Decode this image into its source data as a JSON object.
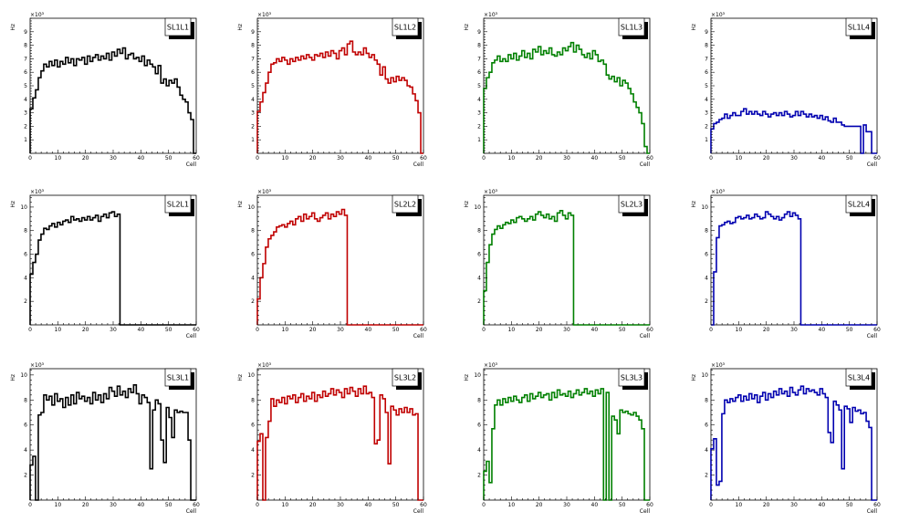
{
  "chart_data": [
    {
      "type": "line",
      "title": "SL1L1",
      "xlabel": "Cell",
      "ylabel": "Hz",
      "exponent": "×10³",
      "xlim": [
        0,
        60
      ],
      "ylim": [
        0,
        10
      ],
      "xticks": [
        0,
        10,
        20,
        30,
        40,
        50,
        60
      ],
      "yticks": [
        1,
        2,
        3,
        4,
        5,
        6,
        7,
        8,
        9
      ],
      "color": "#000000",
      "values": [
        3.3,
        4.1,
        4.7,
        5.6,
        6.1,
        6.6,
        6.4,
        6.8,
        6.5,
        6.9,
        6.4,
        6.8,
        6.6,
        7.1,
        6.7,
        7.0,
        6.5,
        7.0,
        6.9,
        7.1,
        6.6,
        7.2,
        6.8,
        7.1,
        7.3,
        6.9,
        7.2,
        7.0,
        7.4,
        6.9,
        7.5,
        7.2,
        7.7,
        7.4,
        7.8,
        7.0,
        7.3,
        7.4,
        7.0,
        7.1,
        6.8,
        7.2,
        6.5,
        6.9,
        6.6,
        6.4,
        5.9,
        6.5,
        5.2,
        5.5,
        5.0,
        5.4,
        5.2,
        5.5,
        4.9,
        4.3,
        4.0,
        3.8,
        3.0,
        2.5,
        0.0
      ]
    },
    {
      "type": "line",
      "title": "SL1L2",
      "xlabel": "Cell",
      "ylabel": "Hz",
      "exponent": "×10³",
      "xlim": [
        0,
        60
      ],
      "ylim": [
        0,
        10
      ],
      "xticks": [
        0,
        10,
        20,
        30,
        40,
        50,
        60
      ],
      "yticks": [
        1,
        2,
        3,
        4,
        5,
        6,
        7,
        8,
        9
      ],
      "color": "#c00000",
      "values": [
        3.1,
        3.8,
        4.5,
        5.2,
        6.0,
        6.6,
        6.7,
        7.0,
        6.8,
        7.1,
        6.9,
        6.6,
        7.0,
        6.8,
        7.1,
        6.9,
        7.2,
        7.0,
        7.3,
        7.1,
        6.9,
        7.3,
        7.2,
        7.4,
        7.1,
        7.5,
        7.2,
        7.6,
        7.4,
        7.0,
        7.6,
        7.8,
        7.3,
        8.1,
        8.3,
        7.5,
        7.3,
        7.5,
        7.3,
        7.8,
        7.4,
        7.1,
        7.3,
        6.9,
        6.6,
        5.8,
        6.4,
        5.5,
        5.2,
        5.6,
        5.3,
        5.7,
        5.4,
        5.6,
        5.4,
        5.0,
        4.9,
        4.4,
        3.9,
        3.0,
        0.0
      ]
    },
    {
      "type": "line",
      "title": "SL1L3",
      "xlabel": "Cell",
      "ylabel": "Hz",
      "exponent": "×10³",
      "xlim": [
        0,
        60
      ],
      "ylim": [
        0,
        10
      ],
      "xticks": [
        0,
        10,
        20,
        30,
        40,
        50,
        60
      ],
      "yticks": [
        1,
        2,
        3,
        4,
        5,
        6,
        7,
        8,
        9
      ],
      "color": "#008000",
      "values": [
        4.8,
        5.6,
        6.0,
        6.7,
        6.9,
        7.2,
        6.8,
        7.0,
        6.8,
        7.3,
        7.0,
        7.4,
        6.9,
        7.2,
        7.6,
        7.1,
        7.4,
        7.0,
        7.7,
        7.5,
        7.9,
        7.3,
        7.6,
        7.4,
        7.8,
        7.3,
        7.2,
        7.5,
        7.3,
        7.8,
        7.6,
        7.9,
        8.2,
        7.5,
        8.0,
        7.7,
        7.3,
        7.1,
        7.4,
        7.0,
        7.6,
        7.3,
        6.8,
        6.9,
        6.6,
        5.8,
        5.5,
        5.7,
        5.3,
        5.6,
        5.0,
        5.4,
        5.2,
        4.8,
        4.4,
        3.8,
        3.4,
        3.0,
        2.2,
        0.5,
        0.0
      ]
    },
    {
      "type": "line",
      "title": "SL1L4",
      "xlabel": "Cell",
      "ylabel": "Hz",
      "exponent": "×10³",
      "xlim": [
        0,
        60
      ],
      "ylim": [
        0,
        10
      ],
      "xticks": [
        0,
        10,
        20,
        30,
        40,
        50,
        60
      ],
      "yticks": [
        1,
        2,
        3,
        4,
        5,
        6,
        7,
        8,
        9
      ],
      "color": "#0000b0",
      "values": [
        1.8,
        2.2,
        2.3,
        2.5,
        2.6,
        2.9,
        2.6,
        2.8,
        3.0,
        2.8,
        2.8,
        3.1,
        3.3,
        2.9,
        3.1,
        2.9,
        3.1,
        2.9,
        2.8,
        3.1,
        2.9,
        2.7,
        2.9,
        3.0,
        2.8,
        3.0,
        2.8,
        3.1,
        2.9,
        2.7,
        2.8,
        3.1,
        2.8,
        3.1,
        2.9,
        2.7,
        2.9,
        2.7,
        2.8,
        2.6,
        2.8,
        2.5,
        2.7,
        2.4,
        2.3,
        2.6,
        2.3,
        2.3,
        2.1,
        2.0,
        2.0,
        2.0,
        2.0,
        2.0,
        2.0,
        0.0,
        2.1,
        1.6,
        1.6,
        0.0,
        0.0
      ]
    },
    {
      "type": "line",
      "title": "SL2L1",
      "xlabel": "Cell",
      "ylabel": "Hz",
      "exponent": "×10³",
      "xlim": [
        0,
        60
      ],
      "ylim": [
        0,
        11
      ],
      "xticks": [
        0,
        10,
        20,
        30,
        40,
        50,
        60
      ],
      "yticks": [
        2,
        4,
        6,
        8,
        10
      ],
      "color": "#000000",
      "values": [
        4.3,
        5.3,
        6.0,
        7.2,
        7.7,
        8.2,
        8.1,
        8.4,
        8.6,
        8.3,
        8.7,
        8.5,
        8.8,
        8.9,
        8.7,
        9.2,
        8.9,
        9.0,
        8.8,
        9.1,
        8.9,
        9.2,
        8.9,
        9.1,
        9.3,
        8.8,
        9.2,
        9.4,
        9.1,
        9.5,
        9.6,
        9.2,
        9.4,
        0.0,
        0.0,
        0.0,
        0.0,
        0.0,
        0.0,
        0.0,
        0.0,
        0.0,
        0.0,
        0.0,
        0.0,
        0.0,
        0.0,
        0.0,
        0.0,
        0.0,
        0.0,
        0.0,
        0.0,
        0.0,
        0.0,
        0.0,
        0.0,
        0.0,
        0.0,
        0.0,
        0.0
      ]
    },
    {
      "type": "line",
      "title": "SL2L2",
      "xlabel": "Cell",
      "ylabel": "Hz",
      "exponent": "×10³",
      "xlim": [
        0,
        60
      ],
      "ylim": [
        0,
        11
      ],
      "xticks": [
        0,
        10,
        20,
        30,
        40,
        50,
        60
      ],
      "yticks": [
        2,
        4,
        6,
        8,
        10
      ],
      "color": "#c00000",
      "values": [
        2.2,
        4.0,
        5.2,
        6.6,
        7.3,
        7.6,
        7.9,
        8.3,
        8.4,
        8.5,
        8.3,
        8.6,
        8.8,
        8.5,
        9.0,
        9.2,
        8.8,
        9.4,
        9.0,
        9.2,
        9.5,
        9.0,
        8.8,
        9.1,
        9.3,
        9.5,
        9.0,
        9.4,
        9.2,
        9.6,
        9.4,
        9.8,
        9.3,
        0.0,
        0.0,
        0.0,
        0.0,
        0.0,
        0.0,
        0.0,
        0.0,
        0.0,
        0.0,
        0.0,
        0.0,
        0.0,
        0.0,
        0.0,
        0.0,
        0.0,
        0.0,
        0.0,
        0.0,
        0.0,
        0.0,
        0.0,
        0.0,
        0.0,
        0.0,
        0.0,
        0.0
      ]
    },
    {
      "type": "line",
      "title": "SL2L3",
      "xlabel": "Cell",
      "ylabel": "Hz",
      "exponent": "×10³",
      "xlim": [
        0,
        60
      ],
      "ylim": [
        0,
        11
      ],
      "xticks": [
        0,
        10,
        20,
        30,
        40,
        50,
        60
      ],
      "yticks": [
        2,
        4,
        6,
        8,
        10
      ],
      "color": "#008000",
      "values": [
        2.9,
        5.3,
        6.8,
        7.7,
        8.1,
        8.4,
        8.2,
        8.5,
        8.7,
        8.6,
        8.9,
        8.7,
        9.1,
        9.2,
        9.0,
        8.8,
        9.0,
        9.2,
        8.9,
        9.4,
        9.6,
        9.3,
        9.1,
        9.4,
        9.0,
        9.2,
        8.8,
        9.5,
        9.7,
        9.3,
        9.0,
        9.5,
        9.3,
        0.0,
        0.0,
        0.0,
        0.0,
        0.0,
        0.0,
        0.0,
        0.0,
        0.0,
        0.0,
        0.0,
        0.0,
        0.0,
        0.0,
        0.0,
        0.0,
        0.0,
        0.0,
        0.0,
        0.0,
        0.0,
        0.0,
        0.0,
        0.0,
        0.0,
        0.0,
        0.0,
        0.0
      ]
    },
    {
      "type": "line",
      "title": "SL2L4",
      "xlabel": "Cell",
      "ylabel": "Hz",
      "exponent": "×10³",
      "xlim": [
        0,
        60
      ],
      "ylim": [
        0,
        11
      ],
      "xticks": [
        0,
        10,
        20,
        30,
        40,
        50,
        60
      ],
      "yticks": [
        2,
        4,
        6,
        8,
        10
      ],
      "color": "#0000b0",
      "values": [
        0.0,
        4.5,
        7.4,
        8.4,
        8.5,
        8.7,
        8.8,
        8.6,
        8.7,
        9.1,
        9.2,
        9.0,
        9.1,
        9.3,
        9.0,
        9.1,
        9.4,
        9.2,
        9.0,
        9.1,
        9.6,
        9.4,
        9.2,
        9.0,
        9.2,
        8.9,
        9.1,
        9.4,
        9.6,
        9.2,
        9.5,
        9.3,
        9.0,
        0.0,
        0.0,
        0.0,
        0.0,
        0.0,
        0.0,
        0.0,
        0.0,
        0.0,
        0.0,
        0.0,
        0.0,
        0.0,
        0.0,
        0.0,
        0.0,
        0.0,
        0.0,
        0.0,
        0.0,
        0.0,
        0.0,
        0.0,
        0.0,
        0.0,
        0.0,
        0.0,
        0.0
      ]
    },
    {
      "type": "line",
      "title": "SL3L1",
      "xlabel": "Cell",
      "ylabel": "Hz",
      "exponent": "×10³",
      "xlim": [
        0,
        60
      ],
      "ylim": [
        0,
        10.5
      ],
      "xticks": [
        0,
        10,
        20,
        30,
        40,
        50,
        60
      ],
      "yticks": [
        2,
        4,
        6,
        8,
        10
      ],
      "color": "#000000",
      "values": [
        2.8,
        3.5,
        0.0,
        6.8,
        7.0,
        8.4,
        8.0,
        8.3,
        7.6,
        8.5,
        7.9,
        8.1,
        7.4,
        8.2,
        7.6,
        8.4,
        7.7,
        8.6,
        8.1,
        8.3,
        7.9,
        8.2,
        7.7,
        8.6,
        8.0,
        8.4,
        7.8,
        8.5,
        8.1,
        9.0,
        8.7,
        8.3,
        9.1,
        8.4,
        8.7,
        8.2,
        8.9,
        8.6,
        9.2,
        8.5,
        7.7,
        8.4,
        8.2,
        7.8,
        2.5,
        7.2,
        8.0,
        7.7,
        4.8,
        3.0,
        7.4,
        6.6,
        5.0,
        7.2,
        7.0,
        7.1,
        7.0,
        7.0,
        4.8,
        0.0,
        0.0
      ]
    },
    {
      "type": "line",
      "title": "SL3L2",
      "xlabel": "Cell",
      "ylabel": "Hz",
      "exponent": "×10³",
      "xlim": [
        0,
        60
      ],
      "ylim": [
        0,
        10.5
      ],
      "xticks": [
        0,
        10,
        20,
        30,
        40,
        50,
        60
      ],
      "yticks": [
        2,
        4,
        6,
        8,
        10
      ],
      "color": "#c00000",
      "values": [
        4.7,
        5.3,
        0.0,
        5.0,
        6.3,
        8.1,
        7.5,
        8.0,
        7.8,
        8.2,
        7.7,
        8.3,
        8.1,
        8.4,
        7.8,
        8.2,
        8.5,
        7.9,
        8.3,
        8.1,
        8.6,
        7.9,
        8.4,
        8.2,
        8.7,
        8.3,
        8.5,
        8.9,
        8.4,
        8.8,
        8.6,
        8.2,
        8.9,
        8.5,
        9.0,
        8.7,
        8.3,
        8.9,
        8.5,
        9.1,
        8.5,
        8.6,
        8.2,
        4.5,
        4.8,
        8.4,
        8.1,
        7.0,
        2.9,
        7.5,
        7.2,
        6.8,
        7.3,
        7.0,
        7.4,
        7.0,
        7.3,
        6.8,
        6.9,
        0.0,
        0.0
      ]
    },
    {
      "type": "line",
      "title": "SL3L3",
      "xlabel": "Cell",
      "ylabel": "Hz",
      "exponent": "×10³",
      "xlim": [
        0,
        60
      ],
      "ylim": [
        0,
        10.5
      ],
      "xticks": [
        0,
        10,
        20,
        30,
        40,
        50,
        60
      ],
      "yticks": [
        2,
        4,
        6,
        8,
        10
      ],
      "color": "#008000",
      "values": [
        2.3,
        3.1,
        1.4,
        5.7,
        7.6,
        8.0,
        7.6,
        8.1,
        7.8,
        8.2,
        7.9,
        8.3,
        8.0,
        7.8,
        8.2,
        8.4,
        7.9,
        8.5,
        8.1,
        8.3,
        8.6,
        8.2,
        8.4,
        8.5,
        8.0,
        8.6,
        8.2,
        8.8,
        8.4,
        8.5,
        8.3,
        8.7,
        8.2,
        8.5,
        8.8,
        8.4,
        8.6,
        8.9,
        8.5,
        8.7,
        8.3,
        8.8,
        8.5,
        8.9,
        0.0,
        8.6,
        0.0,
        6.7,
        6.4,
        5.3,
        7.2,
        7.0,
        7.1,
        6.9,
        6.8,
        7.0,
        6.7,
        6.4,
        5.7,
        0.0,
        0.0
      ]
    },
    {
      "type": "line",
      "title": "SL3L4",
      "xlabel": "Cell",
      "ylabel": "Hz",
      "exponent": "×10³",
      "xlim": [
        0,
        60
      ],
      "ylim": [
        0,
        10.5
      ],
      "xticks": [
        0,
        10,
        20,
        30,
        40,
        50,
        60
      ],
      "yticks": [
        2,
        4,
        6,
        8,
        10
      ],
      "color": "#0000b0",
      "values": [
        4.1,
        4.9,
        1.2,
        1.5,
        6.9,
        8.0,
        7.8,
        8.1,
        7.9,
        8.2,
        8.4,
        7.9,
        8.3,
        8.0,
        8.5,
        8.1,
        8.4,
        7.8,
        8.3,
        8.6,
        8.0,
        8.5,
        8.2,
        8.7,
        8.4,
        8.9,
        8.5,
        8.7,
        8.3,
        9.0,
        8.6,
        8.4,
        8.8,
        9.1,
        8.5,
        8.9,
        8.7,
        8.8,
        8.6,
        8.4,
        8.9,
        8.5,
        8.2,
        5.4,
        4.6,
        7.9,
        7.6,
        7.2,
        2.5,
        7.5,
        7.3,
        6.2,
        7.4,
        7.1,
        7.2,
        6.9,
        7.0,
        6.3,
        5.8,
        0.0,
        0.0
      ]
    }
  ]
}
